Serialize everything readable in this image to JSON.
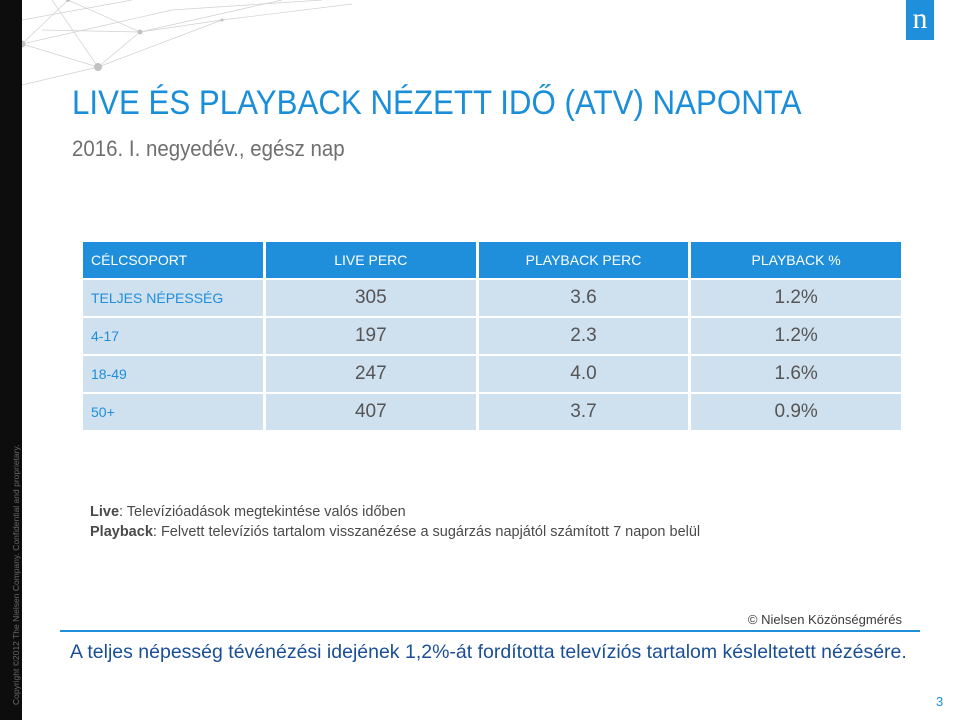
{
  "sidebar": {
    "copyright": "Copyright ©2012 The Nielsen Company. Confidential and proprietary."
  },
  "logo": {
    "letter": "n",
    "color": "#1f8fdc"
  },
  "header": {
    "title": "LIVE ÉS PLAYBACK NÉZETT IDŐ (ATV) NAPONTA",
    "subtitle": "2016. I. negyedév., egész nap"
  },
  "table": {
    "columns": [
      "CÉLCSOPORT",
      "LIVE PERC",
      "PLAYBACK PERC",
      "PLAYBACK %"
    ],
    "rows": [
      [
        "TELJES NÉPESSÉG",
        "305",
        "3.6",
        "1.2%"
      ],
      [
        "4-17",
        "197",
        "2.3",
        "1.2%"
      ],
      [
        "18-49",
        "247",
        "4.0",
        "1.6%"
      ],
      [
        "50+",
        "407",
        "3.7",
        "0.9%"
      ]
    ]
  },
  "notes": {
    "live_term": "Live",
    "live_def": ": Televízióadások megtekintése valós időben",
    "playback_term": "Playback",
    "playback_def": ": Felvett televíziós tartalom visszanézése a sugárzás napjától számított 7 napon belül"
  },
  "source": "© Nielsen Közönségmérés",
  "conclusion": "A teljes népesség tévénézési idejének 1,2%-át fordította televíziós tartalom késleltetett nézésére.",
  "page_number": "3",
  "colors": {
    "accent": "#1f8fdc",
    "header_cell": "#1f8fdc",
    "body_cell": "#cfe0ef",
    "conclusion_text": "#1a4f96"
  }
}
